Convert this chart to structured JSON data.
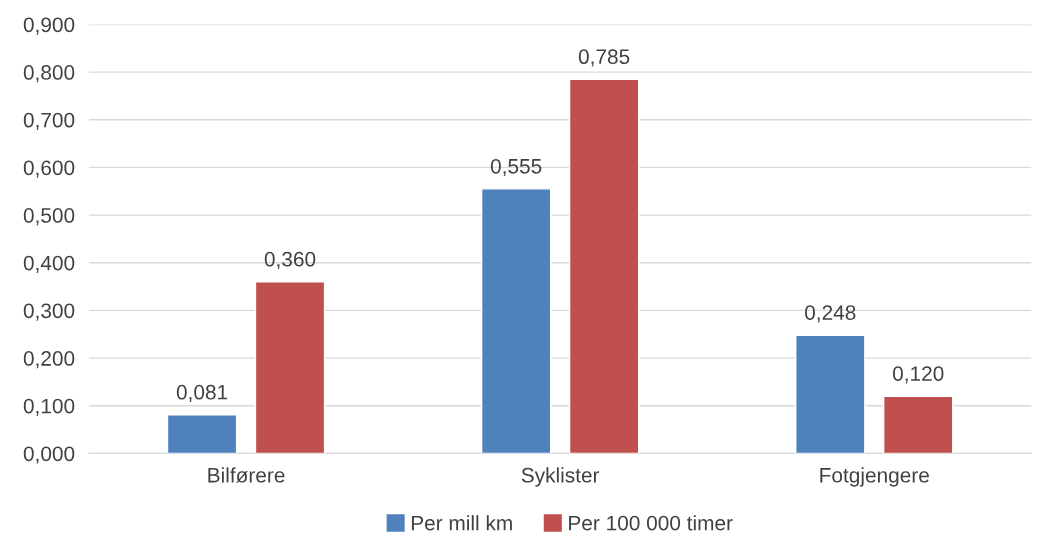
{
  "chart_data": {
    "type": "bar",
    "categories": [
      "Bilførere",
      "Syklister",
      "Fotgjengere"
    ],
    "series": [
      {
        "name": "Per mill km",
        "color": "#4f81bd",
        "values": [
          0.081,
          0.555,
          0.248
        ],
        "value_labels": [
          "0,081",
          "0,555",
          "0,248"
        ]
      },
      {
        "name": "Per 100 000 timer",
        "color": "#c0504d",
        "values": [
          0.36,
          0.785,
          0.12
        ],
        "value_labels": [
          "0,360",
          "0,785",
          "0,120"
        ]
      }
    ],
    "ylim": [
      0,
      0.9
    ],
    "yticks": [
      {
        "value": 0,
        "label": "0,000"
      },
      {
        "value": 0.1,
        "label": "0,100"
      },
      {
        "value": 0.2,
        "label": "0,200"
      },
      {
        "value": 0.3,
        "label": "0,300"
      },
      {
        "value": 0.4,
        "label": "0,400"
      },
      {
        "value": 0.5,
        "label": "0,500"
      },
      {
        "value": 0.6,
        "label": "0,600"
      },
      {
        "value": 0.7,
        "label": "0,700"
      },
      {
        "value": 0.8,
        "label": "0,800"
      },
      {
        "value": 0.9,
        "label": "0,900"
      }
    ],
    "grid": "y",
    "legend": "bottom"
  }
}
